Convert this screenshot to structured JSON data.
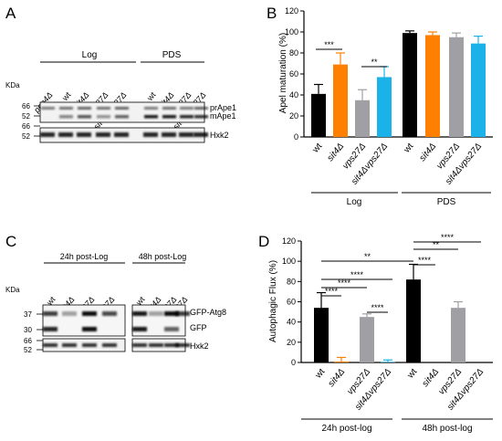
{
  "panels": {
    "A": {
      "letter": "A",
      "groups": [
        "Log",
        "PDS"
      ],
      "kda_label": "KDa",
      "lanes": [
        "pep4Δ",
        "wt",
        "sit4Δ",
        "vps27Δ",
        "sit4Δvps27Δ",
        "wt",
        "sit4Δ",
        "vps27Δ",
        "sit4Δvps27Δ"
      ],
      "markers_top": [
        "66",
        "52"
      ],
      "markers_bottom": [
        "66",
        "52"
      ],
      "band_labels": [
        "prApe1",
        "mApe1",
        "Hxk2"
      ]
    },
    "B": {
      "letter": "B",
      "group_labels": [
        "Log",
        "PDS"
      ],
      "sig_marks": [
        "***",
        "**"
      ]
    },
    "C": {
      "letter": "C",
      "groups": [
        "24h post-Log",
        "48h post-Log"
      ],
      "kda_label": "KDa",
      "lanes": [
        "wt",
        "sit4Δ",
        "vps27Δ",
        "sit4Δvps27Δ",
        "wt",
        "sit4Δ",
        "vps27Δ",
        "sit4Δvps27Δ"
      ],
      "markers_top": [
        "37",
        "30"
      ],
      "markers_bottom": [
        "66",
        "52"
      ],
      "band_labels": [
        "GFP-Atg8",
        "GFP",
        "Hxk2"
      ]
    },
    "D": {
      "letter": "D",
      "group_labels": [
        "24h post-log",
        "48h post-log"
      ],
      "sig_marks": [
        "**",
        "****",
        "****",
        "****",
        "****",
        "**",
        "****",
        "****"
      ]
    }
  },
  "chart_data": [
    {
      "type": "bar",
      "panel": "B",
      "categories": [
        "wt",
        "sit4Δ",
        "vps27Δ",
        "sit4Δvps27Δ",
        "wt",
        "sit4Δ",
        "vps27Δ",
        "sit4Δvps27Δ"
      ],
      "values": [
        41,
        69,
        35,
        57,
        99,
        97,
        95,
        89
      ],
      "errors": [
        9,
        11,
        10,
        10,
        2,
        3,
        4,
        7
      ],
      "colors": [
        "#000000",
        "#ff8000",
        "#a0a0a4",
        "#1ab2e8",
        "#000000",
        "#ff8000",
        "#a0a0a4",
        "#1ab2e8"
      ],
      "ylabel": "Apel maturation (%)",
      "ylim": [
        0,
        120
      ],
      "yticks": [
        "0",
        "20",
        "40",
        "60",
        "80",
        "100",
        "120"
      ]
    },
    {
      "type": "bar",
      "panel": "D",
      "categories": [
        "wt",
        "sit4Δ",
        "vps27Δ",
        "sit4Δvps27Δ",
        "wt",
        "sit4Δ",
        "vps27Δ",
        "sit4Δvps27Δ"
      ],
      "values": [
        54,
        1,
        45,
        0.5,
        82,
        0,
        54,
        0
      ],
      "errors": [
        15,
        4,
        3,
        2,
        15,
        0,
        6,
        0
      ],
      "colors": [
        "#000000",
        "#ff8000",
        "#a0a0a4",
        "#1ab2e8",
        "#000000",
        "#ff8000",
        "#a0a0a4",
        "#1ab2e8"
      ],
      "ylabel": "Autophagic Flux (%)",
      "ylim": [
        0,
        120
      ],
      "yticks": [
        "0",
        "20",
        "40",
        "60",
        "80",
        "100",
        "120"
      ]
    }
  ]
}
